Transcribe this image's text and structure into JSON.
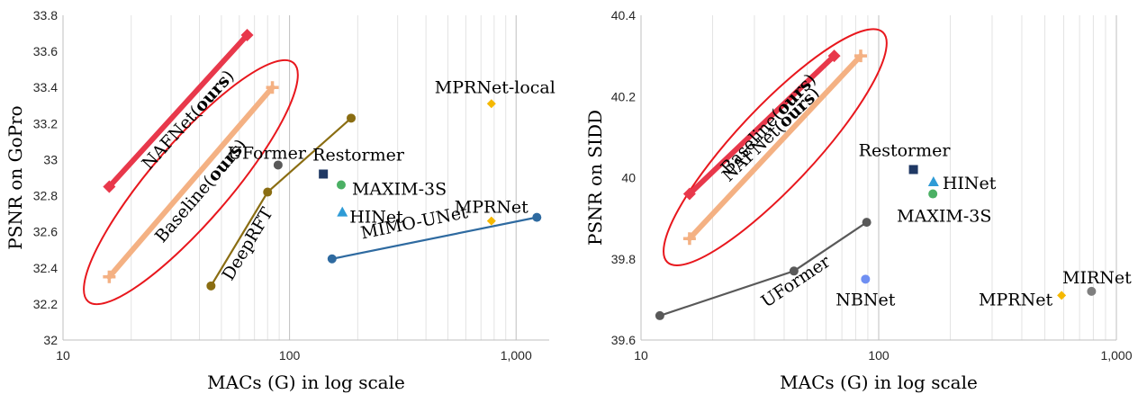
{
  "chart_data": [
    {
      "type": "scatter",
      "xlabel": "MACs (G) in log scale",
      "ylabel": "PSNR on GoPro",
      "xscale": "log",
      "xlim": [
        10,
        1400
      ],
      "ylim": [
        32,
        33.8
      ],
      "xticks": [
        10,
        100,
        1000
      ],
      "xtick_labels": [
        "10",
        "100",
        "1,000"
      ],
      "yticks": [
        32,
        32.2,
        32.4,
        32.6,
        32.8,
        33,
        33.2,
        33.4,
        33.6,
        33.8
      ],
      "ytick_labels": [
        "32",
        "32.2",
        "32.4",
        "32.6",
        "32.8",
        "33",
        "33.2",
        "33.4",
        "33.6",
        "33.8"
      ],
      "grid": "vertical",
      "series": [
        {
          "name": "NAFNet",
          "name_suffix": "(ours)",
          "kind": "line",
          "color": "#e8384b",
          "marker": "diamond",
          "points": [
            [
              16,
              32.85
            ],
            [
              65,
              33.69
            ]
          ]
        },
        {
          "name": "Baseline",
          "name_suffix": "(ours)",
          "kind": "line",
          "color": "#f4b183",
          "marker": "plus",
          "points": [
            [
              16,
              32.35
            ],
            [
              84,
              33.4
            ]
          ]
        },
        {
          "name": "DeepRFT",
          "kind": "line",
          "color": "#8a6d12",
          "marker": "circle",
          "points": [
            [
              45,
              32.3
            ],
            [
              80,
              32.82
            ],
            [
              187,
              33.23
            ]
          ]
        },
        {
          "name": "MIMO-UNet",
          "kind": "line",
          "color": "#2e6aa0",
          "marker": "circle",
          "points": [
            [
              154,
              32.45
            ],
            [
              1235,
              32.68
            ]
          ]
        },
        {
          "name": "UFormer",
          "kind": "point",
          "color": "#595959",
          "marker": "circle",
          "points": [
            [
              89,
              32.97
            ]
          ]
        },
        {
          "name": "Restormer",
          "kind": "point",
          "color": "#1f3864",
          "marker": "square",
          "points": [
            [
              141,
              32.92
            ]
          ]
        },
        {
          "name": "MAXIM-3S",
          "kind": "point",
          "color": "#4bb064",
          "marker": "circle",
          "points": [
            [
              169,
              32.86
            ]
          ]
        },
        {
          "name": "HINet",
          "kind": "point",
          "color": "#2e9bd6",
          "marker": "triangle",
          "points": [
            [
              171,
              32.71
            ]
          ]
        },
        {
          "name": "MPRNet",
          "kind": "point",
          "color": "#f5b800",
          "marker": "diamond",
          "points": [
            [
              778,
              32.66
            ]
          ]
        },
        {
          "name": "MPRNet-local",
          "kind": "point",
          "color": "#f5b800",
          "marker": "diamond",
          "points": [
            [
              778,
              33.31
            ]
          ]
        }
      ]
    },
    {
      "type": "scatter",
      "xlabel": "MACs (G) in log scale",
      "ylabel": "PSNR on SIDD",
      "xscale": "log",
      "xlim": [
        10,
        1000
      ],
      "ylim": [
        39.6,
        40.4
      ],
      "xticks": [
        10,
        100,
        1000
      ],
      "xtick_labels": [
        "10",
        "100",
        "1,000"
      ],
      "yticks": [
        39.6,
        39.8,
        40,
        40.2,
        40.4
      ],
      "ytick_labels": [
        "39.6",
        "39.8",
        "40",
        "40.2",
        "40.4"
      ],
      "grid": "vertical",
      "series": [
        {
          "name": "NAFNet",
          "name_suffix": "(ours)",
          "kind": "line",
          "color": "#e8384b",
          "marker": "diamond",
          "points": [
            [
              16,
              39.96
            ],
            [
              65,
              40.3
            ]
          ]
        },
        {
          "name": "Baseline",
          "name_suffix": "(ours)",
          "kind": "line",
          "color": "#f4b183",
          "marker": "plus",
          "points": [
            [
              16,
              39.85
            ],
            [
              84,
              40.3
            ]
          ]
        },
        {
          "name": "UFormer",
          "kind": "line",
          "color": "#595959",
          "marker": "circle",
          "points": [
            [
              12,
              39.66
            ],
            [
              44,
              39.77
            ],
            [
              89,
              39.89
            ]
          ]
        },
        {
          "name": "Restormer",
          "kind": "point",
          "color": "#1f3864",
          "marker": "square",
          "points": [
            [
              140,
              40.02
            ]
          ]
        },
        {
          "name": "HINet",
          "kind": "point",
          "color": "#2e9bd6",
          "marker": "triangle",
          "points": [
            [
              170,
              39.99
            ]
          ]
        },
        {
          "name": "MAXIM-3S",
          "kind": "point",
          "color": "#4bb064",
          "marker": "circle",
          "points": [
            [
              169,
              39.96
            ]
          ]
        },
        {
          "name": "NBNet",
          "kind": "point",
          "color": "#6f8ff2",
          "marker": "circle",
          "points": [
            [
              88,
              39.75
            ]
          ]
        },
        {
          "name": "MPRNet",
          "kind": "point",
          "color": "#f5b800",
          "marker": "diamond",
          "points": [
            [
              588,
              39.71
            ]
          ]
        },
        {
          "name": "MIRNet",
          "kind": "point",
          "color": "#7f7f7f",
          "marker": "circle",
          "points": [
            [
              786,
              39.72
            ]
          ]
        }
      ]
    }
  ]
}
